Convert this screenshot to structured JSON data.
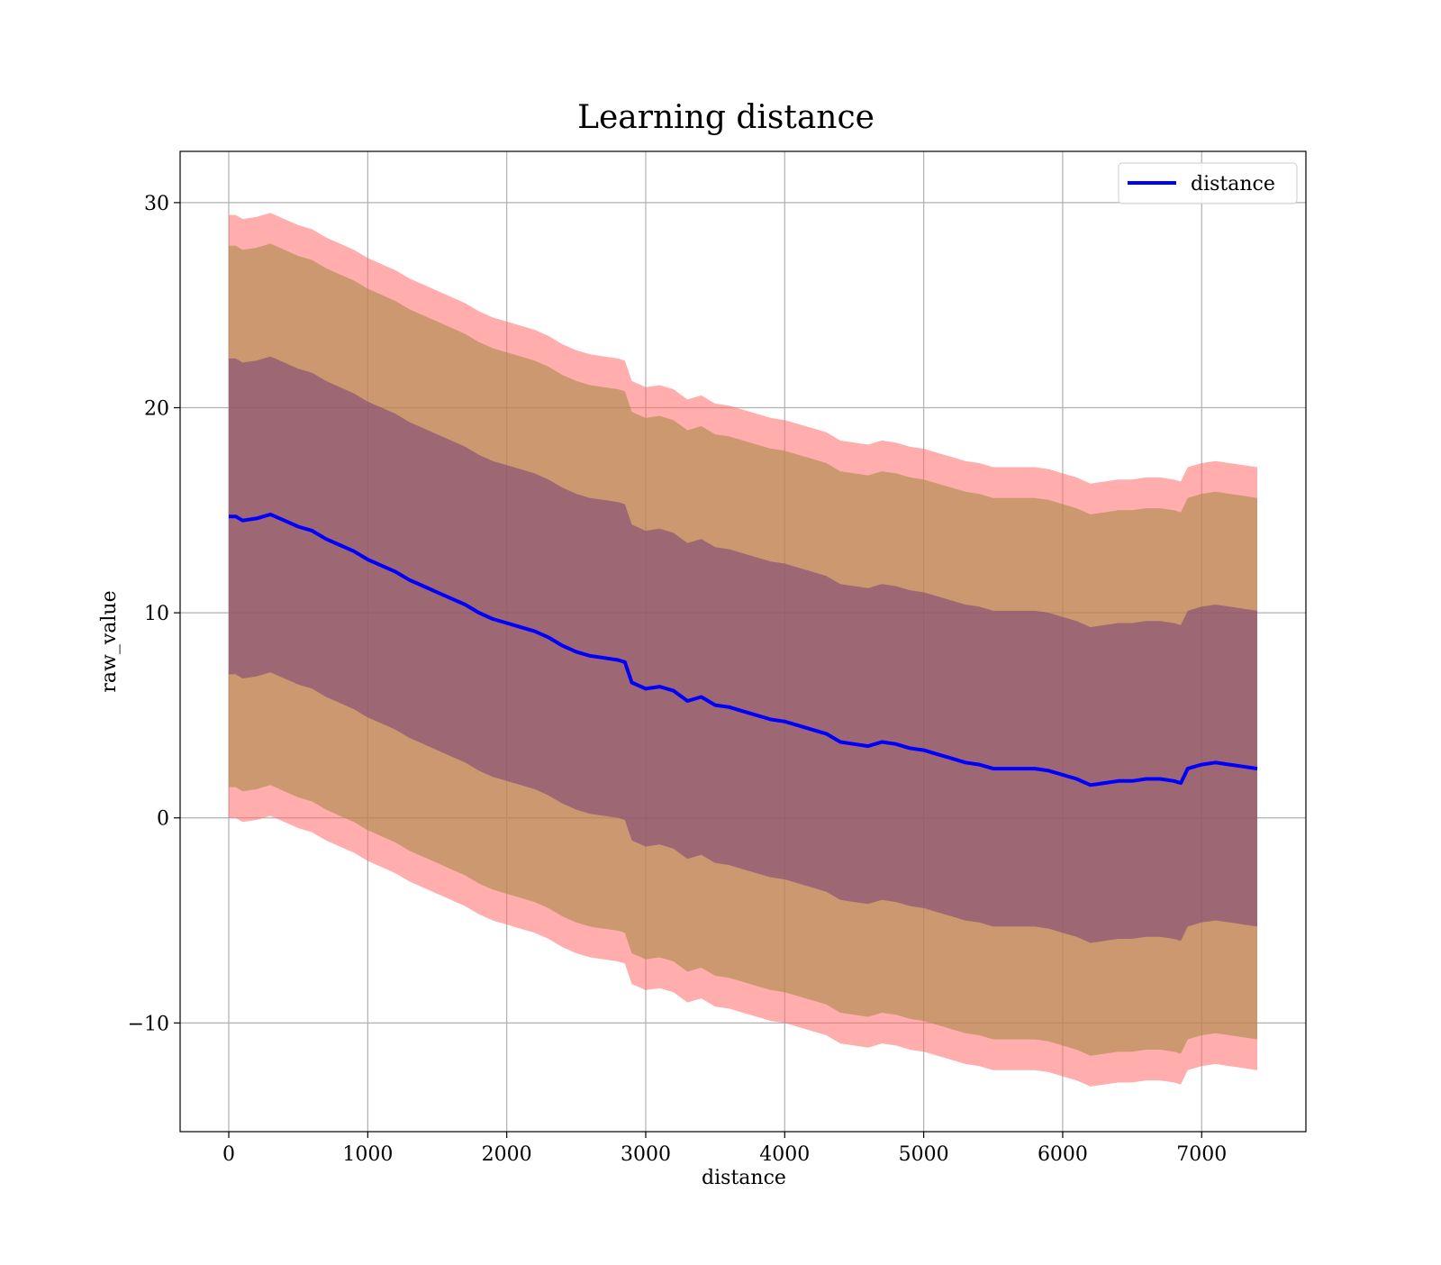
{
  "chart_data": {
    "type": "line",
    "title": "Learning distance",
    "xlabel": "distance",
    "ylabel": "raw_value",
    "xlim": [
      -350,
      7750
    ],
    "ylim": [
      -15.3,
      32.5
    ],
    "x_ticks": [
      0,
      1000,
      2000,
      3000,
      4000,
      5000,
      6000,
      7000
    ],
    "x_tick_labels": [
      "0",
      "1000",
      "2000",
      "3000",
      "4000",
      "5000",
      "6000",
      "7000"
    ],
    "y_ticks": [
      -10,
      0,
      10,
      20,
      30
    ],
    "y_tick_labels": [
      "−10",
      "0",
      "10",
      "20",
      "30"
    ],
    "grid": true,
    "legend": {
      "position": "top-right",
      "entries": [
        "distance"
      ]
    },
    "colors": {
      "line": "#0000ff",
      "band_outer": "#ff6a6a",
      "band_middle": "#a98a46",
      "band_inner": "#7a3f78",
      "grid": "#b0b0b0"
    },
    "band_offsets": {
      "inner": 7.7,
      "middle": 13.2,
      "outer": 14.7
    },
    "series": [
      {
        "name": "distance",
        "x": [
          0,
          50,
          100,
          200,
          300,
          400,
          500,
          600,
          700,
          800,
          900,
          1000,
          1100,
          1200,
          1300,
          1400,
          1500,
          1600,
          1700,
          1800,
          1900,
          2000,
          2100,
          2200,
          2300,
          2400,
          2500,
          2600,
          2700,
          2800,
          2850,
          2900,
          3000,
          3100,
          3200,
          3300,
          3400,
          3500,
          3600,
          3700,
          3800,
          3900,
          4000,
          4100,
          4200,
          4300,
          4400,
          4500,
          4600,
          4700,
          4800,
          4900,
          5000,
          5100,
          5200,
          5300,
          5400,
          5500,
          5600,
          5700,
          5800,
          5900,
          6000,
          6100,
          6200,
          6300,
          6400,
          6500,
          6600,
          6700,
          6800,
          6850,
          6900,
          7000,
          7100,
          7200,
          7300,
          7400
        ],
        "y": [
          14.7,
          14.7,
          14.5,
          14.6,
          14.8,
          14.5,
          14.2,
          14.0,
          13.6,
          13.3,
          13.0,
          12.6,
          12.3,
          12.0,
          11.6,
          11.3,
          11.0,
          10.7,
          10.4,
          10.0,
          9.7,
          9.5,
          9.3,
          9.1,
          8.8,
          8.4,
          8.1,
          7.9,
          7.8,
          7.7,
          7.6,
          6.6,
          6.3,
          6.4,
          6.2,
          5.7,
          5.9,
          5.5,
          5.4,
          5.2,
          5.0,
          4.8,
          4.7,
          4.5,
          4.3,
          4.1,
          3.7,
          3.6,
          3.5,
          3.7,
          3.6,
          3.4,
          3.3,
          3.1,
          2.9,
          2.7,
          2.6,
          2.4,
          2.4,
          2.4,
          2.4,
          2.3,
          2.1,
          1.9,
          1.6,
          1.7,
          1.8,
          1.8,
          1.9,
          1.9,
          1.8,
          1.7,
          2.4,
          2.6,
          2.7,
          2.6,
          2.5,
          2.4
        ]
      }
    ]
  }
}
